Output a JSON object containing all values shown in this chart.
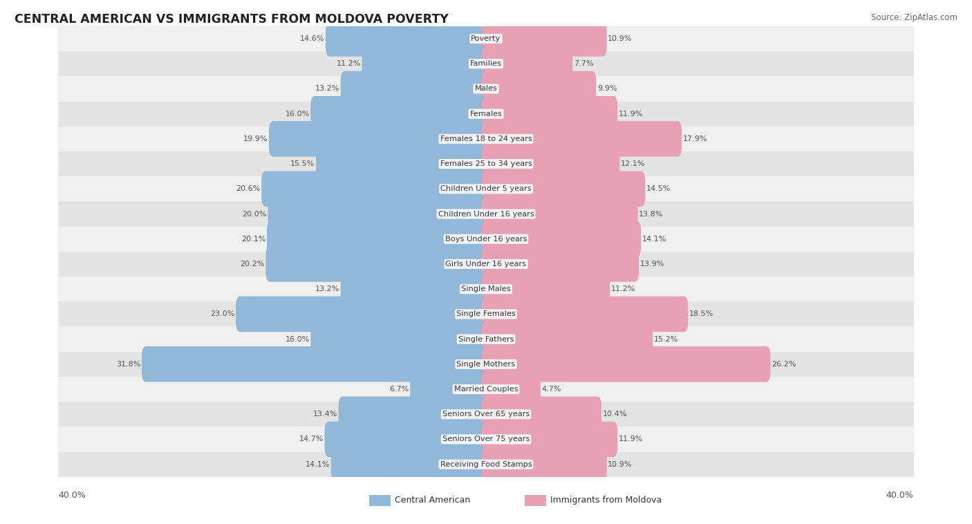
{
  "title": "CENTRAL AMERICAN VS IMMIGRANTS FROM MOLDOVA POVERTY",
  "source": "Source: ZipAtlas.com",
  "categories": [
    "Poverty",
    "Families",
    "Males",
    "Females",
    "Females 18 to 24 years",
    "Females 25 to 34 years",
    "Children Under 5 years",
    "Children Under 16 years",
    "Boys Under 16 years",
    "Girls Under 16 years",
    "Single Males",
    "Single Females",
    "Single Fathers",
    "Single Mothers",
    "Married Couples",
    "Seniors Over 65 years",
    "Seniors Over 75 years",
    "Receiving Food Stamps"
  ],
  "left_values": [
    14.6,
    11.2,
    13.2,
    16.0,
    19.9,
    15.5,
    20.6,
    20.0,
    20.1,
    20.2,
    13.2,
    23.0,
    16.0,
    31.8,
    6.7,
    13.4,
    14.7,
    14.1
  ],
  "right_values": [
    10.9,
    7.7,
    9.9,
    11.9,
    17.9,
    12.1,
    14.5,
    13.8,
    14.1,
    13.9,
    11.2,
    18.5,
    15.2,
    26.2,
    4.7,
    10.4,
    11.9,
    10.9
  ],
  "left_color": "#92b8d8",
  "right_color": "#e8a0b4",
  "row_bg_color_odd": "#f0f0f0",
  "row_bg_color_even": "#e4e4e4",
  "axis_max": 40.0,
  "left_legend": "Central American",
  "right_legend": "Immigrants from Moldova",
  "figsize": [
    14.06,
    7.58
  ],
  "dpi": 100
}
